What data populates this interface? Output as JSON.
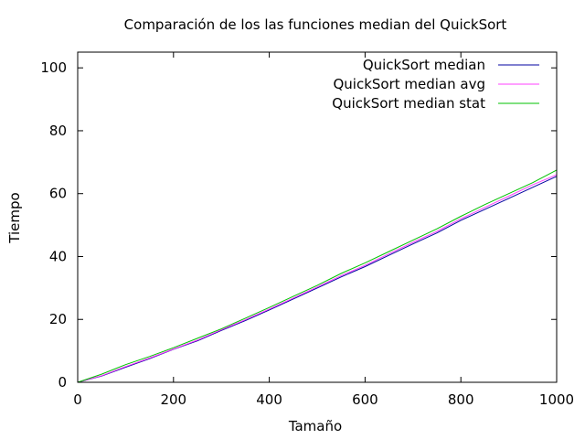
{
  "chart_data": {
    "type": "line",
    "title": "Comparación de los las funciones median del QuickSort",
    "xlabel": "Tamaño",
    "ylabel": "Tiempo",
    "xlim": [
      0,
      1000
    ],
    "ylim": [
      0,
      105
    ],
    "xticks": [
      0,
      200,
      400,
      600,
      800,
      1000
    ],
    "yticks": [
      0,
      20,
      40,
      60,
      80,
      100
    ],
    "grid": false,
    "legend_position": "top-right",
    "x": [
      0,
      50,
      100,
      150,
      200,
      250,
      300,
      350,
      400,
      450,
      500,
      550,
      600,
      650,
      700,
      750,
      800,
      850,
      900,
      950,
      1000
    ],
    "series": [
      {
        "name": "QuickSort median",
        "color": "#0000a0",
        "values": [
          0,
          2.0,
          4.8,
          7.5,
          10.5,
          13.2,
          16.5,
          19.6,
          23.0,
          26.5,
          30.0,
          33.5,
          36.8,
          40.4,
          44.0,
          47.5,
          51.5,
          55.0,
          58.5,
          62.0,
          65.5
        ]
      },
      {
        "name": "QuickSort median avg",
        "color": "#ff40ff",
        "values": [
          0,
          2.1,
          5.0,
          7.7,
          10.6,
          13.4,
          16.7,
          19.9,
          23.3,
          26.8,
          30.3,
          33.9,
          37.2,
          40.9,
          44.5,
          48.0,
          52.0,
          55.6,
          59.2,
          62.8,
          66.0
        ]
      },
      {
        "name": "QuickSort median stat",
        "color": "#00c000",
        "values": [
          0,
          2.6,
          5.6,
          8.2,
          11.0,
          14.0,
          17.0,
          20.4,
          23.8,
          27.3,
          30.8,
          34.6,
          38.0,
          41.6,
          45.2,
          48.8,
          52.8,
          56.5,
          60.0,
          63.5,
          67.5
        ]
      }
    ]
  }
}
